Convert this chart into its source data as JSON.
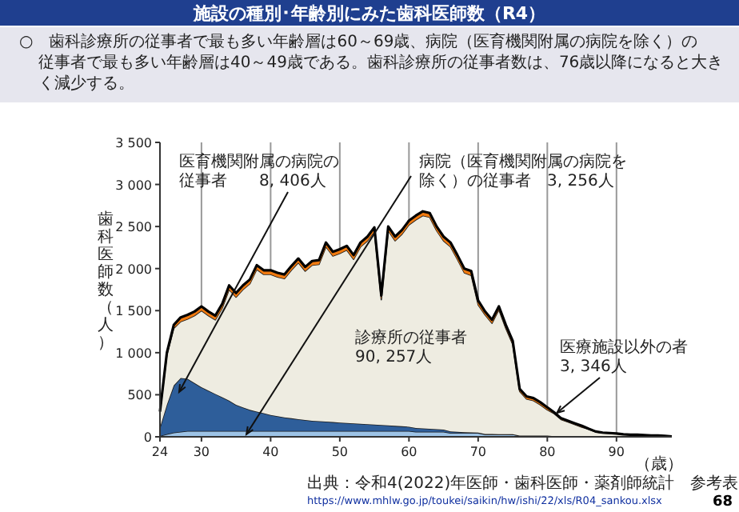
{
  "chart_data": {
    "type": "area",
    "stacked": true,
    "title": "施設の種別･年齢別にみた歯科医師数（R4）",
    "subtitle": "○　歯科診療所の従事者で最も多い年齢層は60～69歳、病院（医育機関附属の病院を除く）の従事者で最も多い年齢層は40～49歳である。歯科診療所の従事者数は、76歳以降になると大きく減少する。",
    "xlabel": "（歳）",
    "ylabel": "歯科医師数（人）",
    "x": [
      24,
      25,
      26,
      27,
      28,
      29,
      30,
      31,
      32,
      33,
      34,
      35,
      36,
      37,
      38,
      39,
      40,
      41,
      42,
      43,
      44,
      45,
      46,
      47,
      48,
      49,
      50,
      51,
      52,
      53,
      54,
      55,
      56,
      57,
      58,
      59,
      60,
      61,
      62,
      63,
      64,
      65,
      66,
      67,
      68,
      69,
      70,
      71,
      72,
      73,
      74,
      75,
      76,
      77,
      78,
      79,
      80,
      81,
      82,
      83,
      84,
      85,
      86,
      87,
      88,
      89,
      90,
      91,
      92,
      93,
      94,
      95,
      96,
      97,
      98
    ],
    "xlim": [
      24,
      98
    ],
    "xticks": [
      24,
      30,
      40,
      50,
      60,
      70,
      80,
      90
    ],
    "ylim": [
      0,
      3500
    ],
    "yticks": [
      0,
      500,
      {
        "value": 1000,
        "label": "1 000"
      },
      {
        "value": 1500,
        "label": "1 500"
      },
      {
        "value": 2000,
        "label": "2 000"
      },
      {
        "value": 2500,
        "label": "2 500"
      },
      {
        "value": 3000,
        "label": "3 000"
      },
      {
        "value": 3500,
        "label": "3 500"
      }
    ],
    "grid": "x",
    "series": [
      {
        "color": "#9dc3e6",
        "values": [
          10,
          30,
          50,
          60,
          70,
          70,
          70,
          70,
          70,
          70,
          70,
          70,
          70,
          70,
          70,
          70,
          70,
          70,
          70,
          70,
          70,
          70,
          70,
          70,
          70,
          70,
          70,
          70,
          70,
          70,
          70,
          70,
          70,
          70,
          70,
          70,
          70,
          60,
          60,
          60,
          60,
          60,
          45,
          45,
          45,
          45,
          45,
          30,
          30,
          30,
          30,
          30,
          15,
          15,
          15,
          15,
          15,
          8,
          8,
          8,
          8,
          8,
          3,
          3,
          3,
          3,
          3,
          3,
          3,
          3,
          3,
          3,
          3,
          3,
          3
        ]
      },
      {
        "color": "#2e5e9a",
        "values": [
          100,
          350,
          560,
          640,
          620,
          570,
          520,
          480,
          440,
          400,
          360,
          310,
          280,
          250,
          230,
          210,
          190,
          175,
          160,
          150,
          140,
          130,
          120,
          115,
          110,
          105,
          100,
          95,
          90,
          85,
          80,
          75,
          70,
          65,
          60,
          55,
          50,
          45,
          40,
          35,
          30,
          25,
          20,
          15,
          10,
          8,
          6,
          4,
          3,
          2,
          1,
          0,
          0,
          0,
          0,
          0,
          0,
          0,
          0,
          0,
          0,
          0,
          0,
          0,
          0,
          0,
          0,
          0,
          0,
          0,
          0,
          0,
          0,
          0,
          0
        ]
      },
      {
        "color": "#eeece1",
        "values": [
          180,
          590,
          680,
          670,
          710,
          800,
          910,
          890,
          880,
          1060,
          1320,
          1280,
          1400,
          1500,
          1690,
          1650,
          1670,
          1655,
          1650,
          1760,
          1860,
          1770,
          1850,
          1865,
          2080,
          1975,
          2010,
          2055,
          1950,
          2105,
          2180,
          2295,
          1490,
          2315,
          2200,
          2285,
          2400,
          2475,
          2530,
          2515,
          2360,
          2245,
          2195,
          2050,
          1895,
          1867,
          1519,
          1416,
          1317,
          1478,
          1259,
          1070,
          525,
          435,
          415,
          365,
          305,
          267,
          197,
          167,
          137,
          107,
          87,
          55,
          42,
          37,
          32,
          25,
          20,
          20,
          15,
          10,
          10,
          5,
          0
        ]
      },
      {
        "color": "#f07a10",
        "values": [
          10,
          30,
          40,
          50,
          50,
          50,
          50,
          50,
          50,
          50,
          50,
          50,
          50,
          50,
          50,
          50,
          50,
          50,
          50,
          50,
          50,
          50,
          50,
          50,
          50,
          50,
          50,
          50,
          50,
          50,
          50,
          50,
          50,
          50,
          50,
          50,
          50,
          50,
          50,
          50,
          50,
          50,
          50,
          50,
          50,
          50,
          50,
          40,
          40,
          40,
          40,
          40,
          30,
          30,
          30,
          30,
          30,
          15,
          15,
          15,
          15,
          15,
          5,
          5,
          5,
          5,
          5,
          2,
          2,
          2,
          2,
          2,
          2,
          2,
          2
        ]
      }
    ],
    "annotations": [
      "医育機関附属の病院の従事者　　8, 406人",
      {
        "text": "病院（医育機関附属の病院を除く）の従事者　3, 256人",
        "x": 36.5,
        "y": 30
      },
      "診療所の従事者90, 257人",
      {
        "text": "医療施設以外の者3, 346人",
        "x": 81.4,
        "y": 285
      },
      "出典：令和4(2022)年医師・歯科医師・薬剤師統計　参考表",
      "https://www.mhlw.go.jp/toukei/saikin/hw/ishi/22/xls/R04_sankou.xlsx",
      "68"
    ]
  }
}
